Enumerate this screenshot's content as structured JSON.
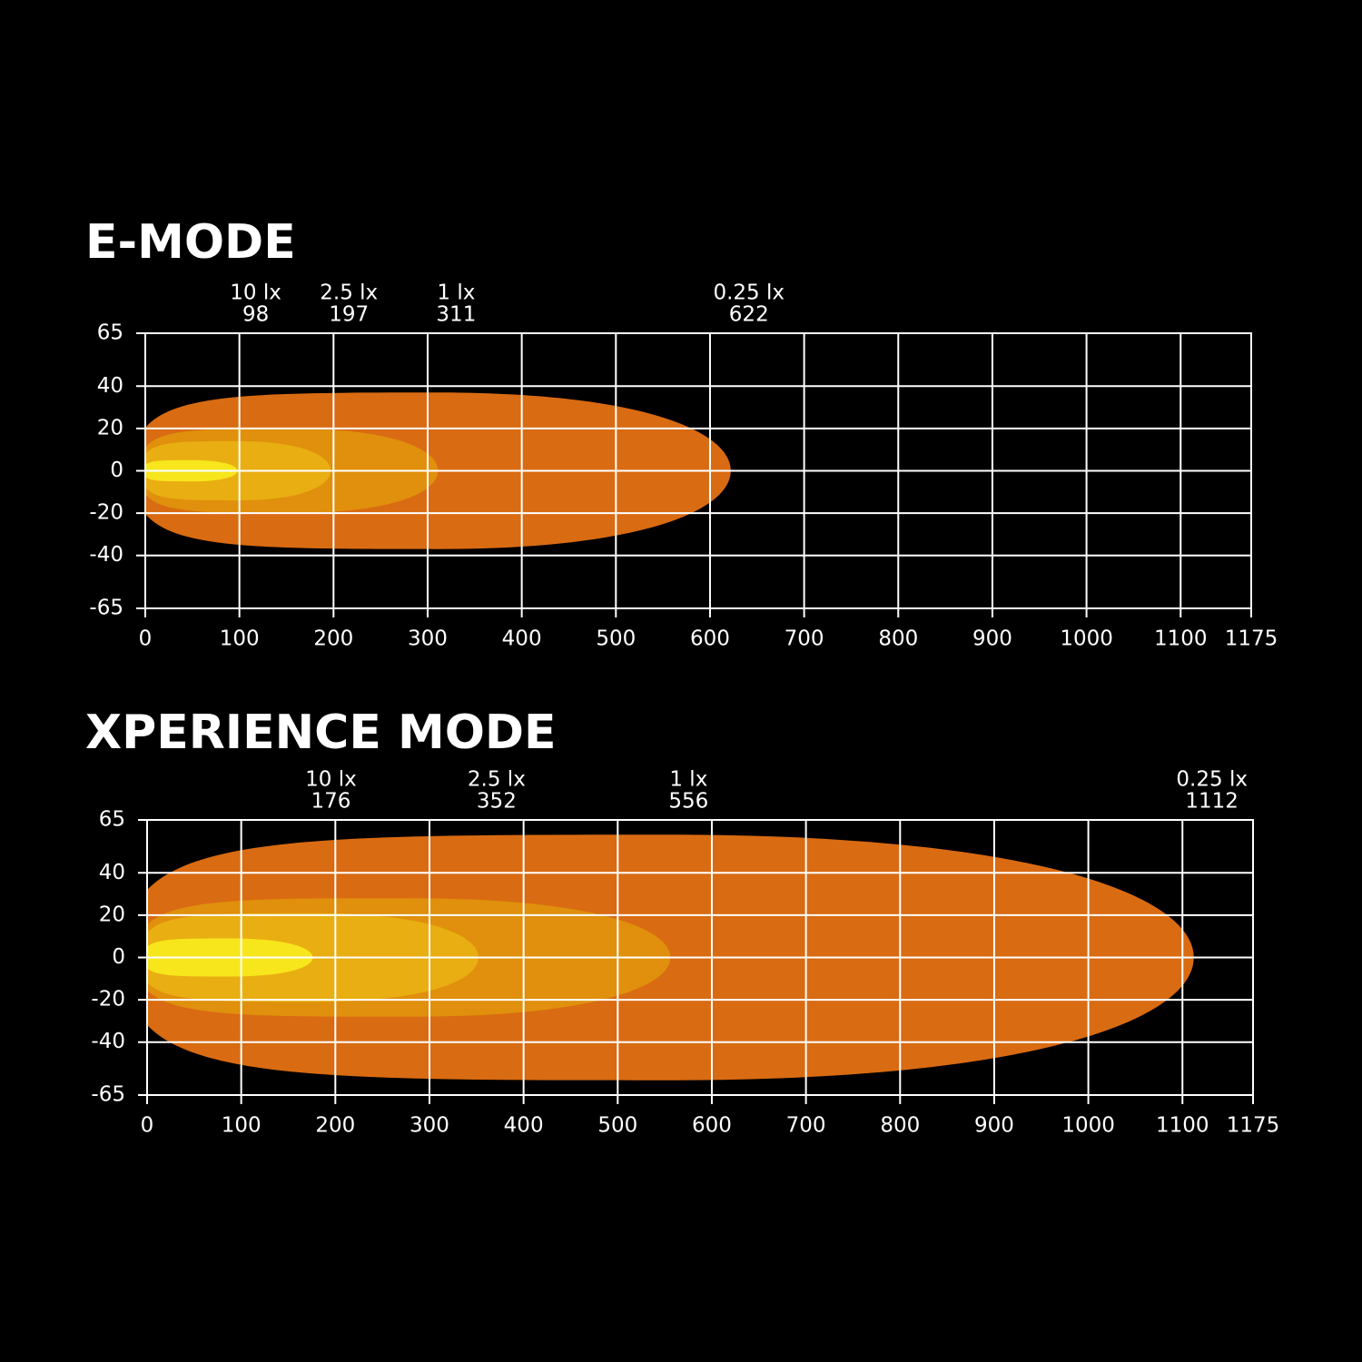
{
  "chart_data": [
    {
      "type": "beam",
      "title": "E-MODE",
      "xlim": [
        0,
        1175
      ],
      "ylim": [
        -65,
        65
      ],
      "xticks": [
        0,
        100,
        200,
        300,
        400,
        500,
        600,
        700,
        800,
        900,
        1000,
        1100,
        1175
      ],
      "yticks": [
        65,
        40,
        20,
        0,
        -20,
        -40,
        -65
      ],
      "grid": true,
      "series": [
        {
          "name": "0.25 lx",
          "color": "#d96b12",
          "reach": 622,
          "halfwidth": 37
        },
        {
          "name": "1 lx",
          "color": "#e0900c",
          "reach": 311,
          "halfwidth": 20
        },
        {
          "name": "2.5 lx",
          "color": "#e9ae12",
          "reach": 197,
          "halfwidth": 14
        },
        {
          "name": "10 lx",
          "color": "#f7e61c",
          "reach": 98,
          "halfwidth": 5
        }
      ]
    },
    {
      "type": "beam",
      "title": "XPERIENCE MODE",
      "xlim": [
        0,
        1175
      ],
      "ylim": [
        -65,
        65
      ],
      "xticks": [
        0,
        100,
        200,
        300,
        400,
        500,
        600,
        700,
        800,
        900,
        1000,
        1100,
        1175
      ],
      "yticks": [
        65,
        40,
        20,
        0,
        -20,
        -40,
        -65
      ],
      "grid": true,
      "series": [
        {
          "name": "0.25 lx",
          "color": "#d96b12",
          "reach": 1112,
          "halfwidth": 58
        },
        {
          "name": "1 lx",
          "color": "#e0900c",
          "reach": 556,
          "halfwidth": 28
        },
        {
          "name": "2.5 lx",
          "color": "#e9ae12",
          "reach": 352,
          "halfwidth": 21
        },
        {
          "name": "10 lx",
          "color": "#f7e61c",
          "reach": 176,
          "halfwidth": 9
        }
      ]
    }
  ]
}
